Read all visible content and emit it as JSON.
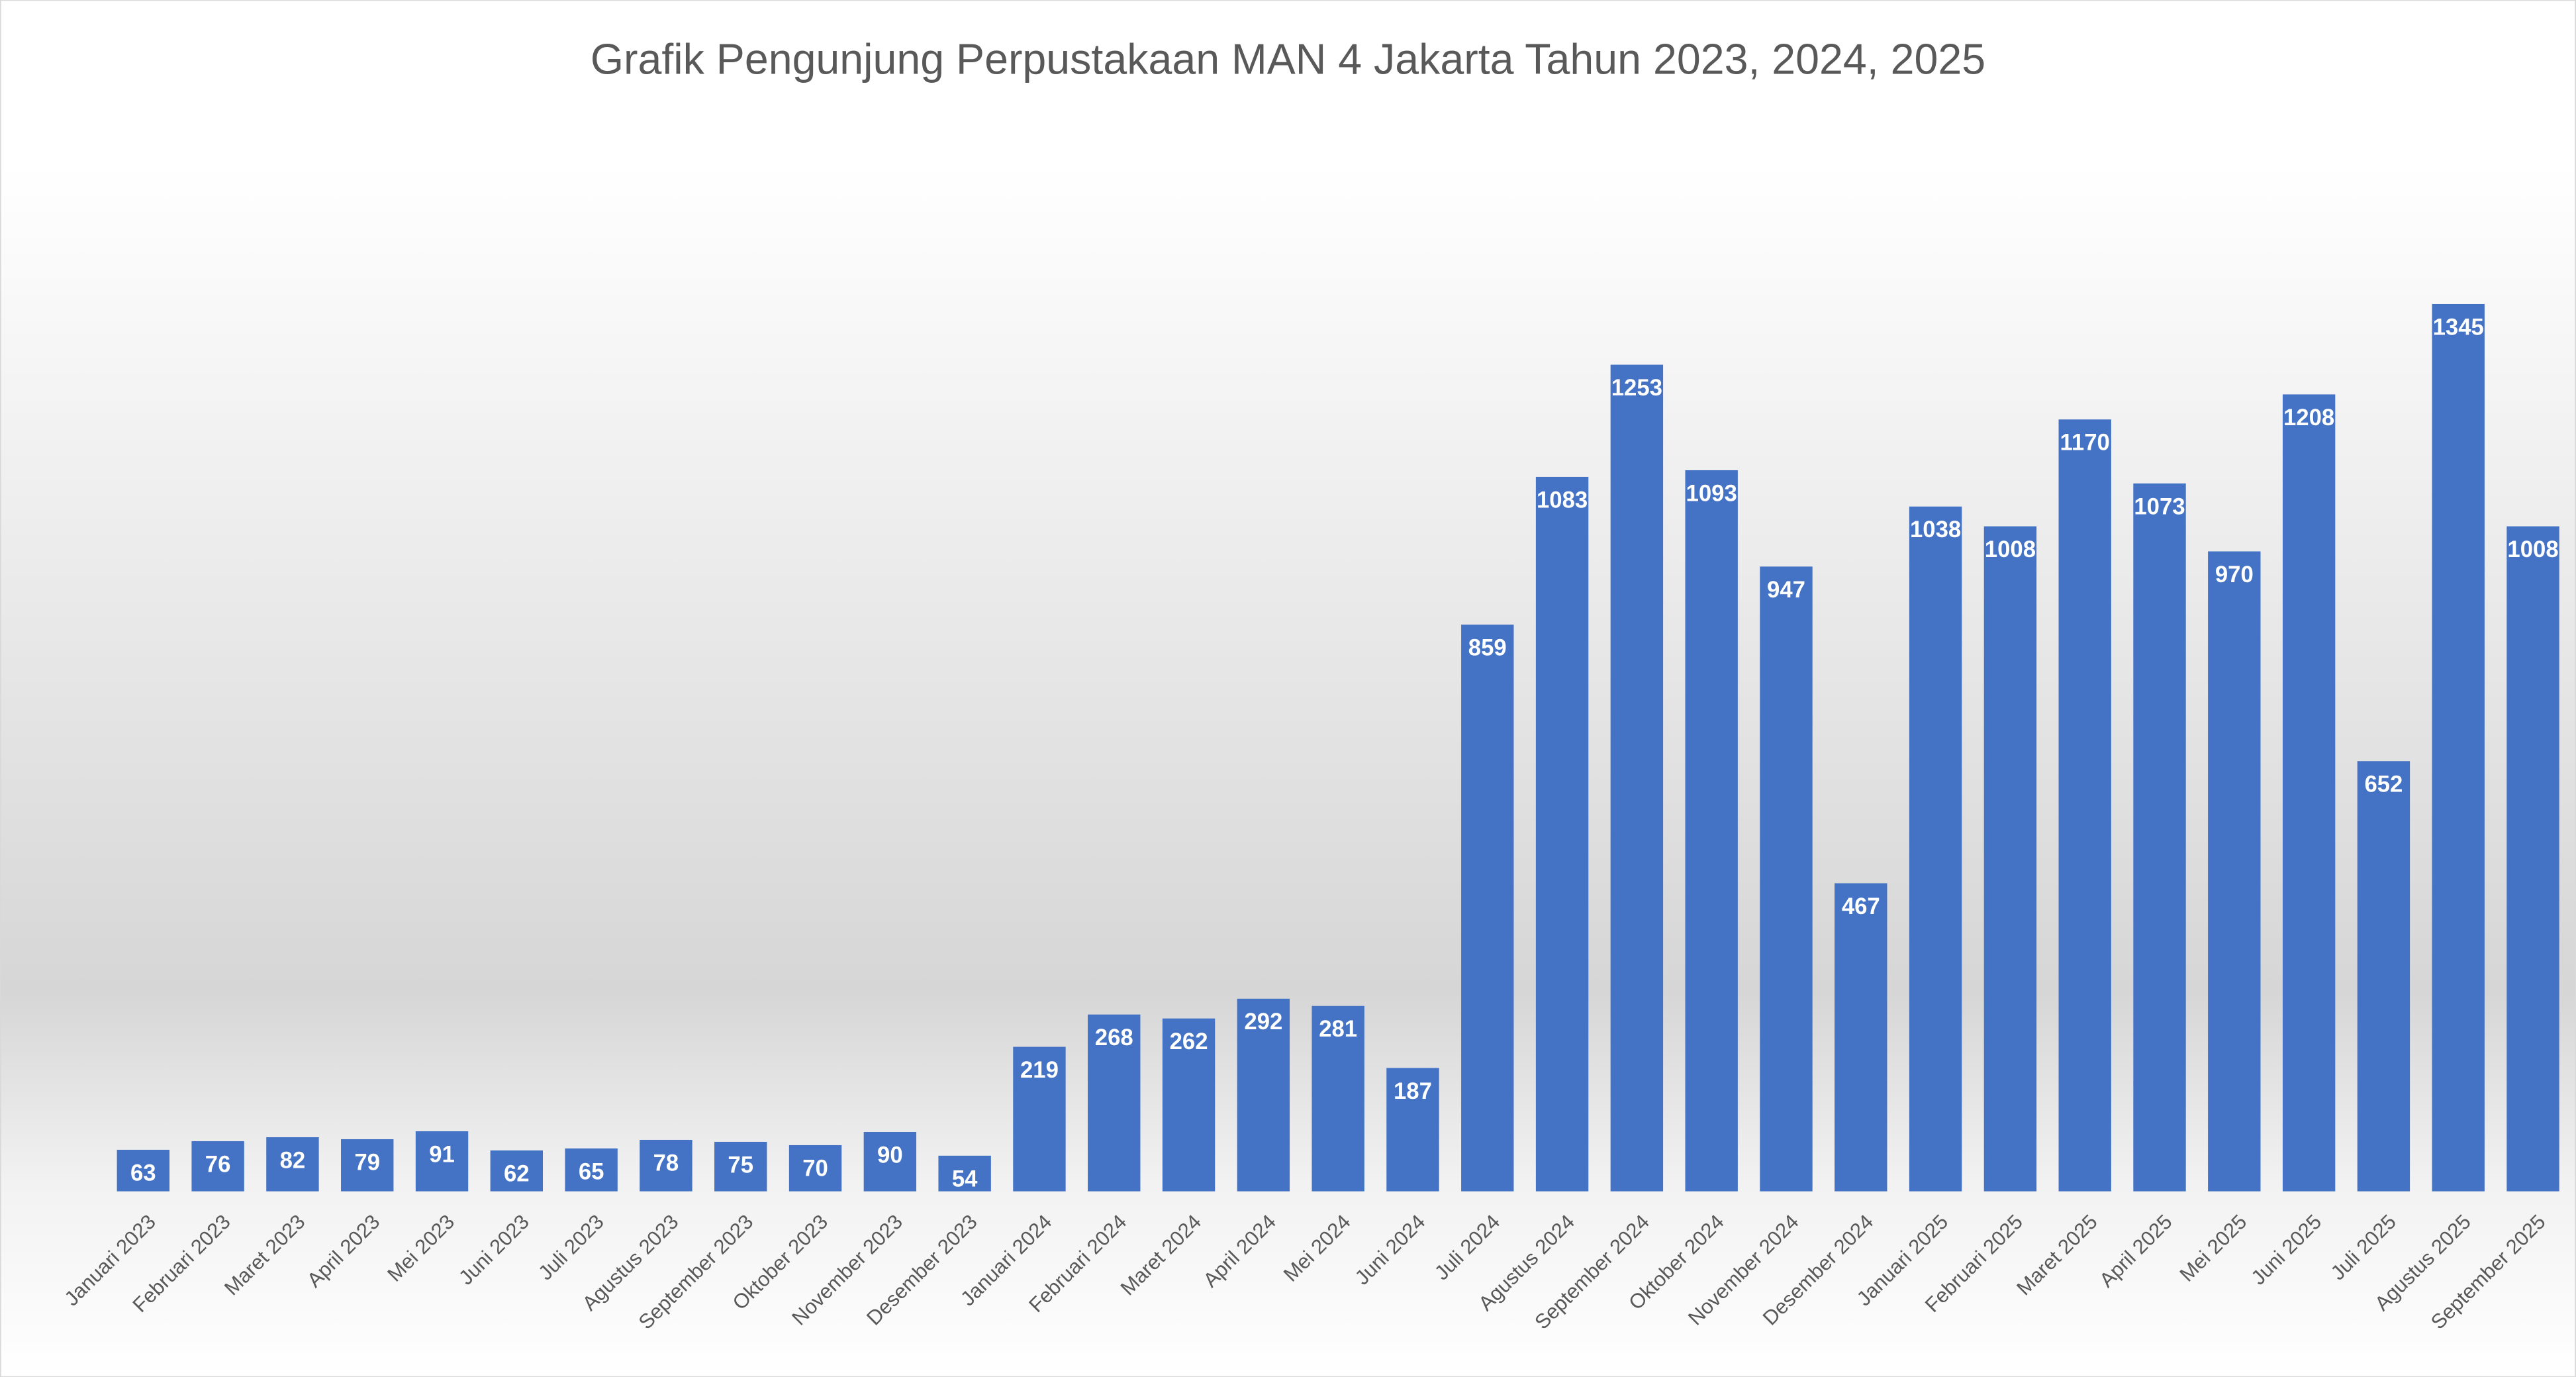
{
  "chart_data": {
    "type": "bar",
    "title": "Grafik Pengunjung Perpustakaan MAN 4 Jakarta Tahun 2023, 2024, 2025",
    "categories": [
      "Januari 2023",
      "Februari 2023",
      "Maret 2023",
      "April 2023",
      "Mei 2023",
      "Juni 2023",
      "Juli 2023",
      "Agustus 2023",
      "September  2023",
      "Oktober 2023",
      "November  2023",
      "Desember 2023",
      "Januari 2024",
      "Februari 2024",
      "Maret 2024",
      "April 2024",
      "Mei 2024",
      "Juni 2024",
      "Juli 2024",
      "Agustus 2024",
      "September  2024",
      "Oktober 2024",
      "November  2024",
      "Desember 2024",
      "Januari 2025",
      "Februari 2025",
      "Maret 2025",
      "April 2025",
      "Mei 2025",
      "Juni 2025",
      "Juli 2025",
      "Agustus 2025",
      "September 2025"
    ],
    "values": [
      63,
      76,
      82,
      79,
      91,
      62,
      65,
      78,
      75,
      70,
      90,
      54,
      219,
      268,
      262,
      292,
      281,
      187,
      859,
      1083,
      1253,
      1093,
      947,
      467,
      1038,
      1008,
      1170,
      1073,
      970,
      1208,
      652,
      1345,
      1008
    ],
    "color": "#4472c4"
  }
}
